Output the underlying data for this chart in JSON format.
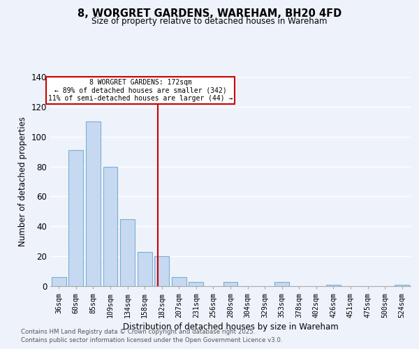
{
  "title": "8, WORGRET GARDENS, WAREHAM, BH20 4FD",
  "subtitle": "Size of property relative to detached houses in Wareham",
  "xlabel": "Distribution of detached houses by size in Wareham",
  "ylabel": "Number of detached properties",
  "bar_labels": [
    "36sqm",
    "60sqm",
    "85sqm",
    "109sqm",
    "134sqm",
    "158sqm",
    "182sqm",
    "207sqm",
    "231sqm",
    "256sqm",
    "280sqm",
    "304sqm",
    "329sqm",
    "353sqm",
    "378sqm",
    "402sqm",
    "426sqm",
    "451sqm",
    "475sqm",
    "500sqm",
    "524sqm"
  ],
  "bar_values": [
    6,
    91,
    110,
    80,
    45,
    23,
    20,
    6,
    3,
    0,
    3,
    0,
    0,
    3,
    0,
    0,
    1,
    0,
    0,
    0,
    1
  ],
  "bar_color": "#c6d9f1",
  "bar_edge_color": "#7bafd4",
  "ylim": [
    0,
    140
  ],
  "yticks": [
    0,
    20,
    40,
    60,
    80,
    100,
    120,
    140
  ],
  "vline_x": 5.77,
  "vline_color": "#cc0000",
  "annotation_title": "8 WORGRET GARDENS: 172sqm",
  "annotation_line1": "← 89% of detached houses are smaller (342)",
  "annotation_line2": "11% of semi-detached houses are larger (44) →",
  "annotation_box_color": "#ffffff",
  "annotation_box_edge": "#cc0000",
  "footnote1": "Contains HM Land Registry data © Crown copyright and database right 2025.",
  "footnote2": "Contains public sector information licensed under the Open Government Licence v3.0.",
  "background_color": "#eef2fb",
  "grid_color": "#ffffff"
}
